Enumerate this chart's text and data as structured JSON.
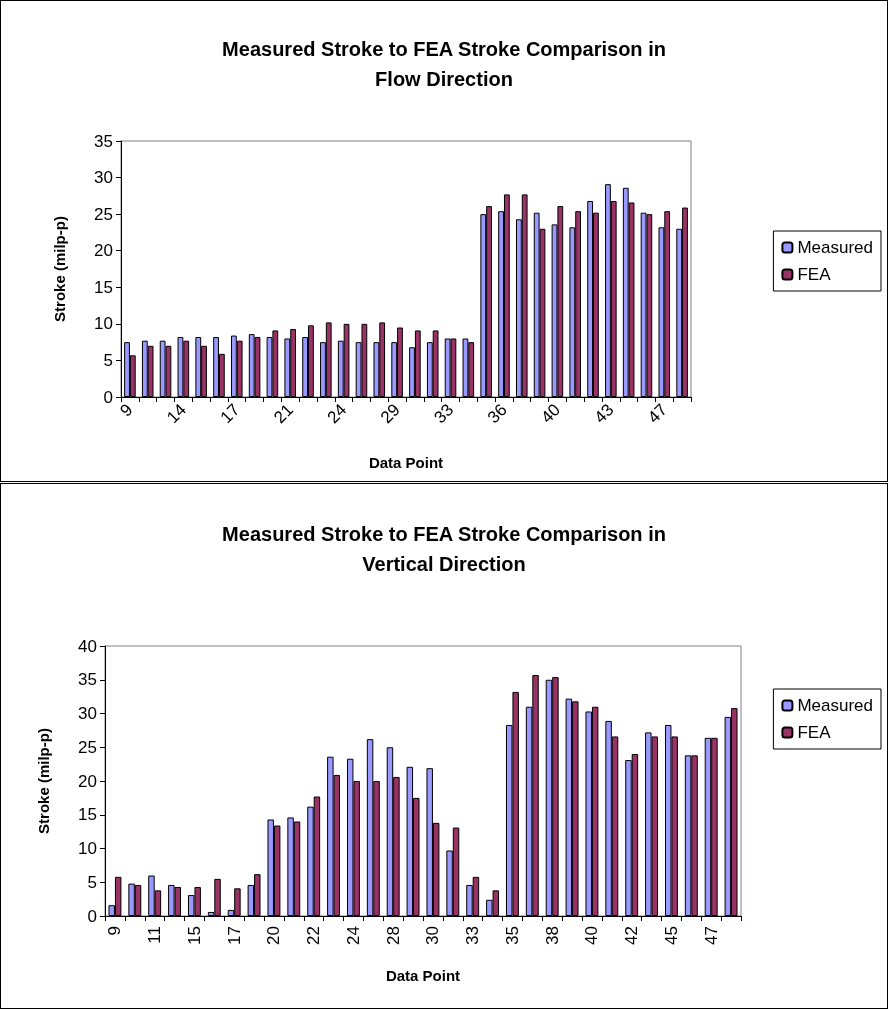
{
  "chart_data": [
    {
      "type": "bar",
      "title": "Measured Stroke to FEA Stroke Comparison in Flow Direction",
      "xlabel": "Data Point",
      "ylabel": "Stroke (milp-p)",
      "categories": [
        "9",
        null,
        null,
        "14",
        null,
        null,
        "17",
        null,
        null,
        "21",
        null,
        null,
        "24",
        null,
        null,
        "29",
        null,
        null,
        "33",
        null,
        null,
        "36",
        null,
        null,
        "40",
        null,
        null,
        "43",
        null,
        null,
        "47",
        null
      ],
      "series": [
        {
          "name": "Measured",
          "color": "#9999ff",
          "values": [
            7.5,
            7.7,
            7.7,
            8.2,
            8.2,
            8.2,
            8.4,
            8.6,
            8.2,
            8.0,
            8.2,
            7.5,
            7.7,
            7.5,
            7.5,
            7.5,
            6.8,
            7.5,
            8.0,
            8.0,
            25.0,
            25.4,
            24.3,
            25.2,
            23.6,
            23.2,
            26.8,
            29.1,
            28.6,
            25.2,
            23.2,
            23.0
          ]
        },
        {
          "name": "FEA",
          "color": "#993366",
          "values": [
            5.7,
            7.0,
            7.0,
            7.7,
            7.0,
            5.9,
            7.7,
            8.2,
            9.1,
            9.3,
            9.8,
            10.2,
            10.0,
            10.0,
            10.2,
            9.5,
            9.1,
            9.1,
            8.0,
            7.5,
            26.1,
            27.7,
            27.7,
            23.0,
            26.1,
            25.4,
            25.2,
            26.8,
            26.6,
            25.0,
            25.4,
            25.9
          ]
        }
      ],
      "ylim": [
        0,
        35
      ],
      "yticks": [
        0,
        5,
        10,
        15,
        20,
        25,
        30,
        35
      ],
      "grid": false,
      "legend": "right"
    },
    {
      "type": "bar",
      "title": "Measured Stroke to FEA Stroke Comparison in Vertical Direction",
      "xlabel": "Data Point",
      "ylabel": "Stroke (milp-p)",
      "categories": [
        "9",
        null,
        "11",
        null,
        "15",
        null,
        "17",
        null,
        "20",
        null,
        "22",
        null,
        "24",
        null,
        "28",
        null,
        "30",
        null,
        "33",
        null,
        "35",
        null,
        "38",
        null,
        "40",
        null,
        "42",
        null,
        "45",
        null,
        "47",
        null
      ],
      "series": [
        {
          "name": "Measured",
          "color": "#9999ff",
          "values": [
            1.6,
            4.8,
            6.0,
            4.6,
            3.1,
            0.6,
            0.9,
            4.6,
            14.3,
            14.6,
            16.2,
            23.6,
            23.3,
            26.2,
            25.0,
            22.1,
            21.9,
            9.7,
            4.6,
            2.4,
            28.3,
            31.0,
            35.0,
            32.2,
            30.3,
            28.9,
            23.1,
            27.2,
            28.3,
            23.8,
            26.4,
            29.5
          ]
        },
        {
          "name": "FEA",
          "color": "#993366",
          "values": [
            5.8,
            4.6,
            3.8,
            4.3,
            4.3,
            5.5,
            4.1,
            6.2,
            13.4,
            14.0,
            17.7,
            20.9,
            20.0,
            20.0,
            20.6,
            17.5,
            13.8,
            13.1,
            5.8,
            3.8,
            33.2,
            35.7,
            35.4,
            31.8,
            31.0,
            26.6,
            24.0,
            26.6,
            26.6,
            23.8,
            26.4,
            30.8
          ]
        }
      ],
      "ylim": [
        0,
        40
      ],
      "yticks": [
        0,
        5,
        10,
        15,
        20,
        25,
        30,
        35,
        40
      ],
      "grid": false,
      "legend": "right"
    }
  ]
}
